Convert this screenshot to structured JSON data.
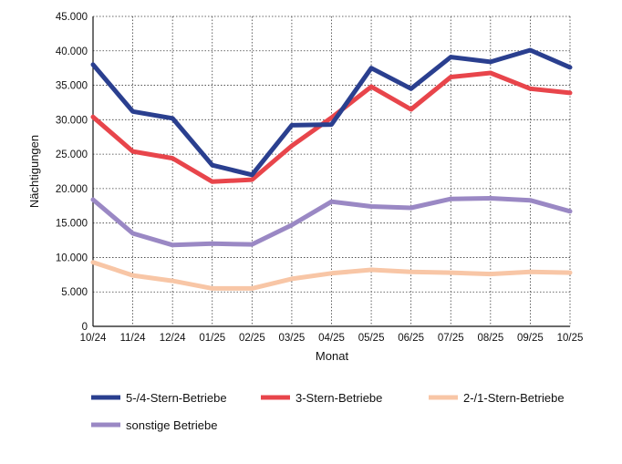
{
  "chart_data": {
    "type": "line",
    "title": "",
    "xlabel": "Monat",
    "ylabel": "Nächtigungen",
    "categories": [
      "10/24",
      "11/24",
      "12/24",
      "01/25",
      "02/25",
      "03/25",
      "04/25",
      "05/25",
      "06/25",
      "07/25",
      "08/25",
      "09/25",
      "10/25"
    ],
    "yticks": [
      "0",
      "5.000",
      "10.000",
      "15.000",
      "20.000",
      "25.000",
      "30.000",
      "35.000",
      "40.000",
      "45.000"
    ],
    "ylim": [
      0,
      45000
    ],
    "ytick_step": 5000,
    "grid": true,
    "legend_position": "bottom",
    "series": [
      {
        "name": "5-/4-Stern-Betriebe",
        "color": "#2a3f8f",
        "values": [
          38000,
          31200,
          30200,
          23400,
          22000,
          29200,
          29300,
          37500,
          34500,
          39100,
          38400,
          40100,
          37600
        ]
      },
      {
        "name": "3-Stern-Betriebe",
        "color": "#e8454b",
        "values": [
          30400,
          25400,
          24400,
          21000,
          21300,
          26200,
          30300,
          34800,
          31500,
          36200,
          36800,
          34500,
          33900
        ]
      },
      {
        "name": "2-/1-Stern-Betriebe",
        "color": "#f8c6a6",
        "values": [
          9300,
          7400,
          6600,
          5500,
          5500,
          6900,
          7700,
          8200,
          7900,
          7800,
          7600,
          7900,
          7800
        ]
      },
      {
        "name": "sonstige Betriebe",
        "color": "#9a88c4",
        "values": [
          18400,
          13500,
          11800,
          12000,
          11900,
          14700,
          18100,
          17400,
          17200,
          18500,
          18600,
          18300,
          16700
        ]
      }
    ]
  }
}
